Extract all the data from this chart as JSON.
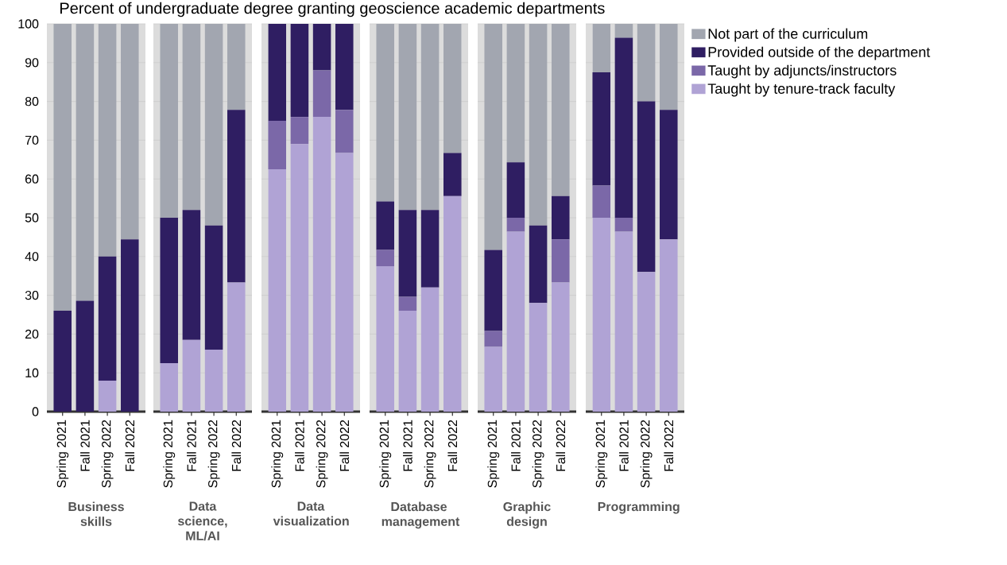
{
  "chart_data": [
    {
      "type": "bar",
      "stacked": true,
      "title": "Percent of undergraduate degree granting geoscience academic departments",
      "xlabel": "Business skills",
      "categories": [
        "Spring 2021",
        "Fall 2021",
        "Spring 2022",
        "Fall 2022"
      ],
      "ylim": [
        0,
        100
      ],
      "yticks": [
        0,
        10,
        20,
        30,
        40,
        50,
        60,
        70,
        80,
        90,
        100
      ],
      "grid": "y",
      "series": [
        {
          "color": "#b0a3d5",
          "values": [
            0,
            0,
            8,
            0
          ]
        },
        {
          "color": "#7b68a8",
          "values": [
            0,
            0,
            0,
            0
          ]
        },
        {
          "color": "#2f1e62",
          "values": [
            26,
            28.6,
            32,
            44.4
          ]
        },
        {
          "color": "#a2a6b0",
          "values": [
            74,
            71.4,
            60,
            55.6
          ]
        }
      ]
    },
    {
      "type": "bar",
      "stacked": true,
      "xlabel": "Data science, ML/AI",
      "categories": [
        "Spring 2021",
        "Fall 2021",
        "Spring 2022",
        "Fall 2022"
      ],
      "ylim": [
        0,
        100
      ],
      "yticks": [
        0,
        10,
        20,
        30,
        40,
        50,
        60,
        70,
        80,
        90,
        100
      ],
      "grid": "y",
      "tick_labels": "x",
      "series": [
        {
          "color": "#b0a3d5",
          "values": [
            12.5,
            18.5,
            16,
            33.3
          ]
        },
        {
          "color": "#7b68a8",
          "values": [
            0,
            0,
            0,
            0
          ]
        },
        {
          "color": "#2f1e62",
          "values": [
            37.5,
            33.5,
            32,
            44.5
          ]
        },
        {
          "color": "#a2a6b0",
          "values": [
            50,
            48,
            52,
            22.2
          ]
        }
      ]
    },
    {
      "type": "bar",
      "stacked": true,
      "xlabel": "Data visualization",
      "categories": [
        "Spring 2021",
        "Fall 2021",
        "Spring 2022",
        "Fall 2022"
      ],
      "ylim": [
        0,
        100
      ],
      "yticks": [
        0,
        10,
        20,
        30,
        40,
        50,
        60,
        70,
        80,
        90,
        100
      ],
      "grid": "y",
      "tick_labels": "x",
      "series": [
        {
          "color": "#b0a3d5",
          "values": [
            62.5,
            69,
            76,
            66.7
          ]
        },
        {
          "color": "#7b68a8",
          "values": [
            12.5,
            7,
            12,
            11.1
          ]
        },
        {
          "color": "#2f1e62",
          "values": [
            25,
            24,
            12,
            22.2
          ]
        },
        {
          "color": "#a2a6b0",
          "values": [
            0,
            0,
            0,
            0
          ]
        }
      ]
    },
    {
      "type": "bar",
      "stacked": true,
      "xlabel": "Database management",
      "categories": [
        "Spring 2021",
        "Fall 2021",
        "Spring 2022",
        "Fall 2022"
      ],
      "ylim": [
        0,
        100
      ],
      "yticks": [
        0,
        10,
        20,
        30,
        40,
        50,
        60,
        70,
        80,
        90,
        100
      ],
      "grid": "y",
      "tick_labels": "x",
      "series": [
        {
          "color": "#b0a3d5",
          "values": [
            37.5,
            26,
            32,
            55.6
          ]
        },
        {
          "color": "#7b68a8",
          "values": [
            4.2,
            3.6,
            0,
            0
          ]
        },
        {
          "color": "#2f1e62",
          "values": [
            12.5,
            22.4,
            20,
            11.1
          ]
        },
        {
          "color": "#a2a6b0",
          "values": [
            45.8,
            48,
            48,
            33.3
          ]
        }
      ]
    },
    {
      "type": "bar",
      "stacked": true,
      "xlabel": "Graphic design",
      "categories": [
        "Spring 2021",
        "Fall 2021",
        "Spring 2022",
        "Fall 2022"
      ],
      "ylim": [
        0,
        100
      ],
      "yticks": [
        0,
        10,
        20,
        30,
        40,
        50,
        60,
        70,
        80,
        90,
        100
      ],
      "grid": "y",
      "tick_labels": "x",
      "series": [
        {
          "color": "#b0a3d5",
          "values": [
            16.7,
            46.4,
            28,
            33.3
          ]
        },
        {
          "color": "#7b68a8",
          "values": [
            4.1,
            3.6,
            0,
            11.1
          ]
        },
        {
          "color": "#2f1e62",
          "values": [
            20.9,
            14.3,
            20,
            11.2
          ]
        },
        {
          "color": "#a2a6b0",
          "values": [
            58.3,
            35.7,
            52,
            44.4
          ]
        }
      ]
    },
    {
      "type": "bar",
      "stacked": true,
      "xlabel": "Programming",
      "categories": [
        "Spring 2021",
        "Fall 2021",
        "Spring 2022",
        "Fall 2022"
      ],
      "ylim": [
        0,
        100
      ],
      "yticks": [
        0,
        10,
        20,
        30,
        40,
        50,
        60,
        70,
        80,
        90,
        100
      ],
      "grid": "y",
      "tick_labels": "x",
      "legend": "right",
      "series": [
        {
          "name": "Taught by tenure-track faculty",
          "color": "#b0a3d5",
          "values": [
            50,
            46.4,
            36,
            44.4
          ]
        },
        {
          "name": "Taught by adjuncts/instructors",
          "color": "#7b68a8",
          "values": [
            8.3,
            3.6,
            0,
            0
          ]
        },
        {
          "name": "Provided outside of the department",
          "color": "#2f1e62",
          "values": [
            29.2,
            46.4,
            44,
            33.4
          ]
        },
        {
          "name": "Not part of the curriculum",
          "color": "#a2a6b0",
          "values": [
            12.5,
            3.6,
            20,
            22.2
          ]
        }
      ]
    }
  ]
}
